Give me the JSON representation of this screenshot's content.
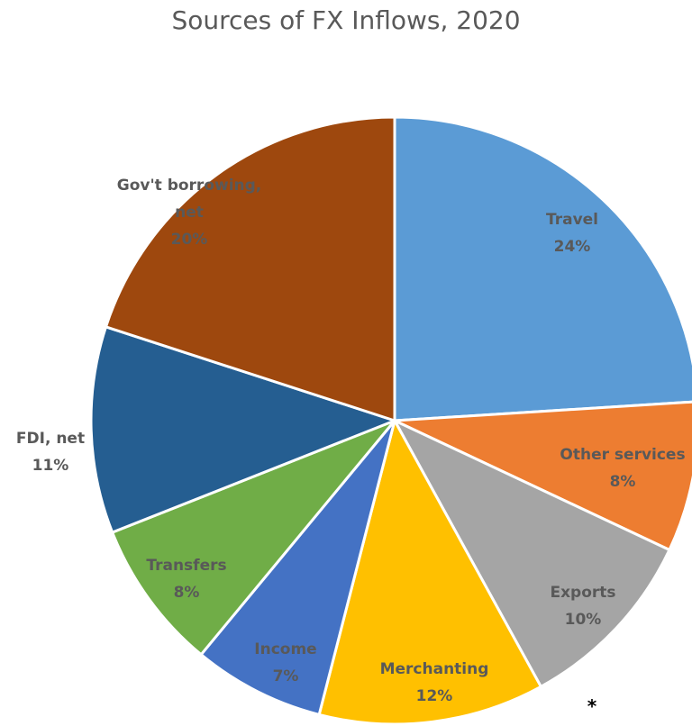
{
  "chart_data": {
    "type": "pie",
    "title": "Sources of FX Inflows, 2020",
    "slices": [
      {
        "name": "Travel",
        "percent_label": "24%",
        "value": 24,
        "color": "#5B9BD5"
      },
      {
        "name": "Other services",
        "percent_label": "8%",
        "value": 8,
        "color": "#ED7D31"
      },
      {
        "name": "Exports",
        "percent_label": "10%",
        "value": 10,
        "color": "#A5A5A5"
      },
      {
        "name": "Merchanting",
        "percent_label": "12%",
        "value": 12,
        "color": "#FFC000"
      },
      {
        "name": "Income",
        "percent_label": "7%",
        "value": 7,
        "color": "#4472C4"
      },
      {
        "name": "Transfers",
        "percent_label": "8%",
        "value": 8,
        "color": "#70AD47"
      },
      {
        "name": "FDI, net",
        "percent_label": "11%",
        "value": 11,
        "color": "#255E91"
      },
      {
        "name": "Gov't borrowing, net",
        "percent_label": "20%",
        "value": 20,
        "color": "#9E480E"
      }
    ],
    "footnote_mark": "*"
  }
}
